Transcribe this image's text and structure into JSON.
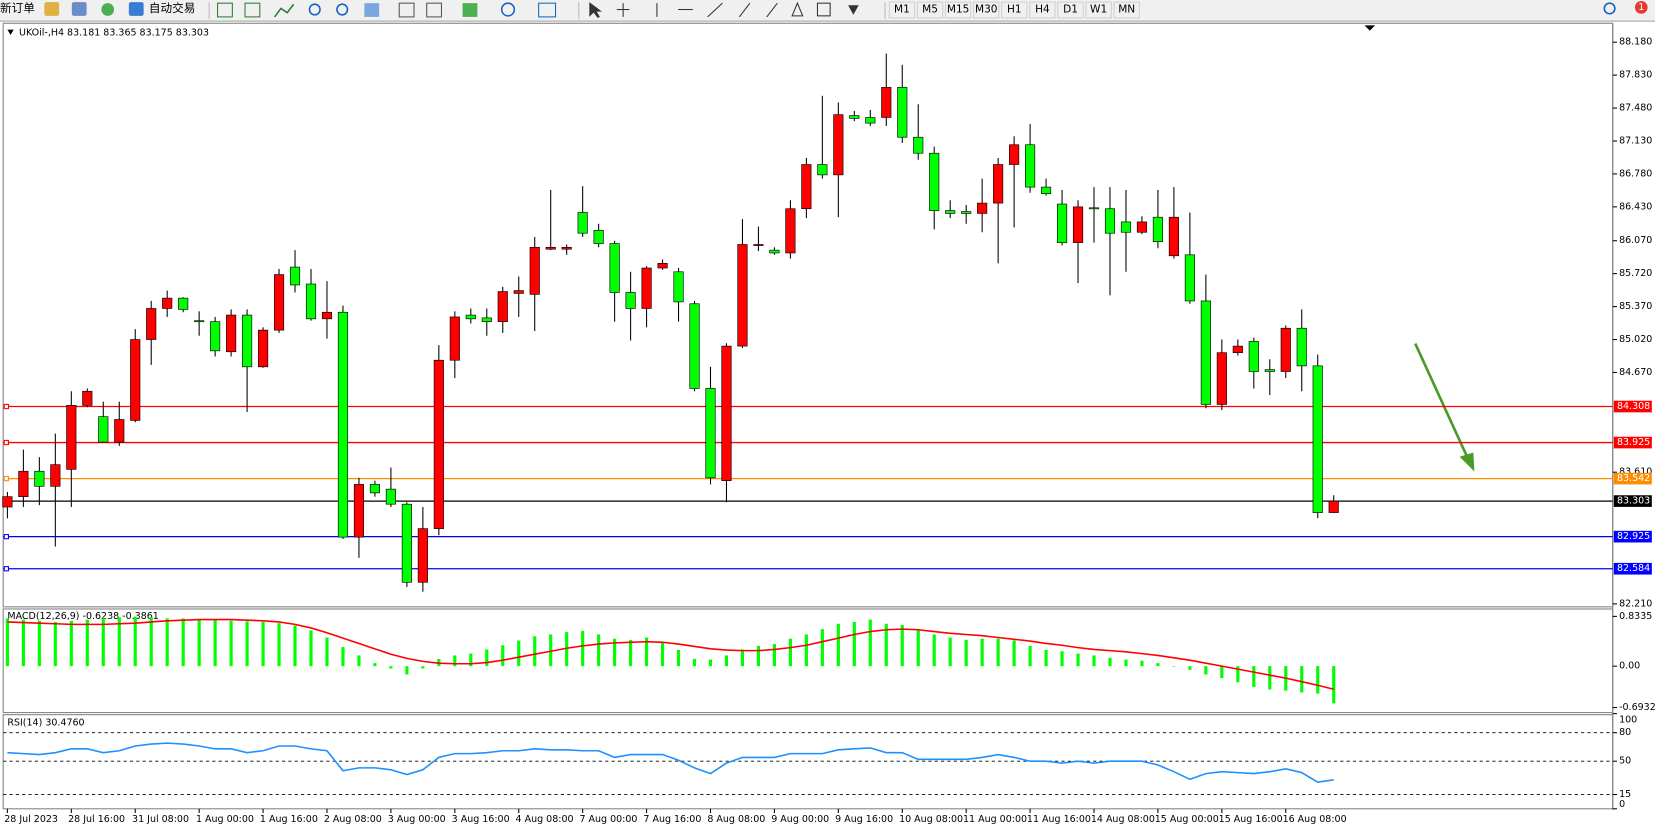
{
  "toolbar": {
    "new_order": "新订单",
    "auto_trading": "自动交易",
    "timeframes": [
      "M1",
      "M5",
      "M15",
      "M30",
      "H1",
      "H4",
      "D1",
      "W1",
      "MN"
    ],
    "notifications": 1
  },
  "chart_data": [
    {
      "type": "candlestick",
      "title": "UKOil-,H4  83.181 83.365 83.175 83.303",
      "up_color": "#ff0000",
      "down_color": "#00ff00",
      "categories": [
        "28 Jul 2023",
        null,
        null,
        null,
        "28 Jul 16:00",
        null,
        null,
        null,
        "31 Jul 08:00",
        null,
        null,
        null,
        "1 Aug 00:00",
        null,
        null,
        null,
        "1 Aug 16:00",
        null,
        null,
        null,
        "2 Aug 08:00",
        null,
        null,
        null,
        "3 Aug 00:00",
        null,
        null,
        null,
        "3 Aug 16:00",
        null,
        null,
        null,
        "4 Aug 08:00",
        null,
        null,
        null,
        "7 Aug 00:00",
        null,
        null,
        null,
        "7 Aug 16:00",
        null,
        null,
        null,
        "8 Aug 08:00",
        null,
        null,
        null,
        "9 Aug 00:00",
        null,
        null,
        null,
        "9 Aug 16:00",
        null,
        null,
        null,
        "10 Aug 08:00",
        null,
        null,
        null,
        "11 Aug 00:00",
        null,
        null,
        null,
        "11 Aug 16:00",
        null,
        null,
        null,
        "14 Aug 08:00",
        null,
        null,
        null,
        "15 Aug 00:00",
        null,
        null,
        null,
        "15 Aug 16:00",
        null,
        null,
        null,
        "16 Aug 08:00",
        null,
        null,
        null
      ],
      "open": [
        83.24,
        83.35,
        83.62,
        83.46,
        83.64,
        84.32,
        84.2,
        83.93,
        84.16,
        85.02,
        85.35,
        85.46,
        85.22,
        85.21,
        84.89,
        85.28,
        84.73,
        85.12,
        85.79,
        85.61,
        85.24,
        85.31,
        82.92,
        83.48,
        83.43,
        83.27,
        82.44,
        83.01,
        84.8,
        85.28,
        85.25,
        85.21,
        85.51,
        85.5,
        85.98,
        85.98,
        86.37,
        86.18,
        86.04,
        85.52,
        85.35,
        85.78,
        85.74,
        85.4,
        84.5,
        83.52,
        84.95,
        86.02,
        85.97,
        85.94,
        86.41,
        86.88,
        86.77,
        87.4,
        87.38,
        87.38,
        87.7,
        87.17,
        87.0,
        86.39,
        86.38,
        86.36,
        86.47,
        86.88,
        87.09,
        86.64,
        86.46,
        86.05,
        86.42,
        86.41,
        86.27,
        86.16,
        86.32,
        85.91,
        85.92,
        85.43,
        84.33,
        84.88,
        85.0,
        84.7,
        84.68,
        85.14,
        84.74,
        83.181
      ],
      "high": [
        83.4,
        83.85,
        83.77,
        84.02,
        84.47,
        84.5,
        84.36,
        84.36,
        85.13,
        85.43,
        85.54,
        85.47,
        85.32,
        85.26,
        85.34,
        85.34,
        85.15,
        85.77,
        85.97,
        85.77,
        85.64,
        85.38,
        83.55,
        83.52,
        83.66,
        83.29,
        83.24,
        84.96,
        85.32,
        85.35,
        85.35,
        85.58,
        85.69,
        86.11,
        86.61,
        86.03,
        86.65,
        86.25,
        86.07,
        85.74,
        85.8,
        85.87,
        85.78,
        85.43,
        84.73,
        84.98,
        86.3,
        86.22,
        86.0,
        86.5,
        86.95,
        87.61,
        87.54,
        87.45,
        87.46,
        88.06,
        87.94,
        87.52,
        87.07,
        86.5,
        86.45,
        86.73,
        86.95,
        87.18,
        87.31,
        86.73,
        86.61,
        86.5,
        86.64,
        86.64,
        86.61,
        86.33,
        86.61,
        86.64,
        86.37,
        85.71,
        85.02,
        85.02,
        85.04,
        84.81,
        85.17,
        85.34,
        84.86,
        83.365
      ],
      "low": [
        83.12,
        83.24,
        83.26,
        82.82,
        83.24,
        84.3,
        83.93,
        83.89,
        84.14,
        84.75,
        85.26,
        85.31,
        85.06,
        84.84,
        84.84,
        84.25,
        84.72,
        85.09,
        85.52,
        85.22,
        85.03,
        82.9,
        82.7,
        83.35,
        83.24,
        82.39,
        82.34,
        82.94,
        84.61,
        85.19,
        85.06,
        85.09,
        85.26,
        85.11,
        85.97,
        85.92,
        86.11,
        86.0,
        85.21,
        85.01,
        85.15,
        85.76,
        85.21,
        84.47,
        83.48,
        83.29,
        84.93,
        85.96,
        85.92,
        85.88,
        86.31,
        86.73,
        86.32,
        87.34,
        87.29,
        87.29,
        87.11,
        86.93,
        86.19,
        86.31,
        86.25,
        86.16,
        85.83,
        86.21,
        86.58,
        86.55,
        86.02,
        85.62,
        86.05,
        85.49,
        85.74,
        86.14,
        85.99,
        85.88,
        85.4,
        84.29,
        84.27,
        84.85,
        84.5,
        84.43,
        84.61,
        84.47,
        83.12,
        83.175
      ],
      "close": [
        83.35,
        83.62,
        83.46,
        83.69,
        84.32,
        84.47,
        83.93,
        84.17,
        85.02,
        85.35,
        85.46,
        85.34,
        85.21,
        84.9,
        85.28,
        84.73,
        85.12,
        85.71,
        85.6,
        85.24,
        85.31,
        82.92,
        83.48,
        83.39,
        83.27,
        82.44,
        83.01,
        84.8,
        85.26,
        85.24,
        85.21,
        85.53,
        85.54,
        86.0,
        86.0,
        86.0,
        86.15,
        86.04,
        85.52,
        85.35,
        85.78,
        85.83,
        85.42,
        84.5,
        83.55,
        84.95,
        86.03,
        86.03,
        85.94,
        86.41,
        86.88,
        86.77,
        87.41,
        87.37,
        87.32,
        87.7,
        87.17,
        87.0,
        86.39,
        86.36,
        86.36,
        86.47,
        86.88,
        87.09,
        86.64,
        86.57,
        86.05,
        86.43,
        86.41,
        86.15,
        86.16,
        86.27,
        86.06,
        86.32,
        85.43,
        84.33,
        84.88,
        84.95,
        84.68,
        84.68,
        85.14,
        84.74,
        83.18,
        83.303
      ],
      "ylim": [
        82.19,
        88.37
      ],
      "yticks": [
        {
          "value": 88.18,
          "label": "88.180"
        },
        {
          "value": 87.83,
          "label": "87.830"
        },
        {
          "value": 87.48,
          "label": "87.480"
        },
        {
          "value": 87.13,
          "label": "87.130"
        },
        {
          "value": 86.78,
          "label": "86.780"
        },
        {
          "value": 86.43,
          "label": "86.430"
        },
        {
          "value": 86.07,
          "label": "86.070"
        },
        {
          "value": 85.72,
          "label": "85.720"
        },
        {
          "value": 85.37,
          "label": "85.370"
        },
        {
          "value": 85.02,
          "label": "85.020"
        },
        {
          "value": 84.67,
          "label": "84.670"
        },
        {
          "value": 83.61,
          "label": "83.610"
        },
        {
          "value": 82.21,
          "label": "82.210"
        }
      ],
      "hlines": [
        {
          "value": 84.308,
          "label": "84.308",
          "color": "#ff0000"
        },
        {
          "value": 83.925,
          "label": "83.925",
          "color": "#ff0000"
        },
        {
          "value": 83.542,
          "label": "83.542",
          "color": "#ff8c00"
        },
        {
          "value": 83.303,
          "label": "83.303",
          "color": "#000000"
        },
        {
          "value": 82.925,
          "label": "82.925",
          "color": "#0000ff"
        },
        {
          "value": 82.584,
          "label": "82.584",
          "color": "#0000ff"
        }
      ]
    },
    {
      "type": "macd",
      "title": "MACD(12,26,9) -0.6238 -0.3861",
      "color": "#00ff00",
      "signal_color": "#ff0000",
      "values": [
        0.8,
        0.78,
        0.76,
        0.74,
        0.76,
        0.78,
        0.8,
        0.82,
        0.83,
        0.82,
        0.8,
        0.8,
        0.79,
        0.78,
        0.76,
        0.75,
        0.74,
        0.72,
        0.68,
        0.6,
        0.48,
        0.32,
        0.18,
        0.05,
        -0.04,
        -0.14,
        -0.04,
        0.12,
        0.18,
        0.21,
        0.28,
        0.35,
        0.43,
        0.5,
        0.53,
        0.57,
        0.59,
        0.53,
        0.46,
        0.44,
        0.48,
        0.39,
        0.27,
        0.12,
        0.11,
        0.18,
        0.28,
        0.34,
        0.37,
        0.46,
        0.53,
        0.62,
        0.71,
        0.74,
        0.78,
        0.71,
        0.69,
        0.62,
        0.53,
        0.48,
        0.44,
        0.46,
        0.46,
        0.43,
        0.34,
        0.27,
        0.25,
        0.21,
        0.18,
        0.14,
        0.11,
        0.09,
        0.05,
        0.0,
        -0.06,
        -0.14,
        -0.2,
        -0.27,
        -0.35,
        -0.39,
        -0.41,
        -0.44,
        -0.46,
        -0.6238
      ],
      "signal": [
        0.74,
        0.73,
        0.72,
        0.71,
        0.7,
        0.7,
        0.7,
        0.71,
        0.72,
        0.74,
        0.76,
        0.77,
        0.78,
        0.78,
        0.78,
        0.77,
        0.76,
        0.74,
        0.7,
        0.64,
        0.56,
        0.47,
        0.38,
        0.29,
        0.2,
        0.13,
        0.08,
        0.05,
        0.04,
        0.04,
        0.06,
        0.1,
        0.15,
        0.2,
        0.25,
        0.3,
        0.34,
        0.37,
        0.39,
        0.4,
        0.41,
        0.4,
        0.37,
        0.33,
        0.29,
        0.27,
        0.26,
        0.26,
        0.28,
        0.31,
        0.35,
        0.41,
        0.47,
        0.53,
        0.58,
        0.61,
        0.62,
        0.61,
        0.58,
        0.55,
        0.53,
        0.51,
        0.48,
        0.45,
        0.42,
        0.38,
        0.35,
        0.31,
        0.28,
        0.26,
        0.24,
        0.21,
        0.18,
        0.14,
        0.1,
        0.05,
        0.0,
        -0.05,
        -0.1,
        -0.15,
        -0.2,
        -0.26,
        -0.32,
        -0.3861
      ],
      "ylim": [
        -0.76,
        0.94
      ],
      "yticks": [
        0.8335,
        {
          "value": 0,
          "label": "0.00"
        },
        -0.6932
      ]
    },
    {
      "type": "line",
      "title": "RSI(14) 30.4760",
      "color": "#1e90ff",
      "values": [
        59,
        58,
        57,
        59,
        63,
        63,
        59,
        61,
        66,
        68,
        69,
        68,
        66,
        63,
        63,
        59,
        61,
        66,
        66,
        63,
        61,
        40,
        43,
        43,
        41,
        36,
        41,
        54,
        58,
        58,
        59,
        61,
        61,
        63,
        62,
        62,
        61,
        61,
        54,
        57,
        57,
        57,
        51,
        43,
        37,
        48,
        54,
        54,
        54,
        58,
        58,
        58,
        62,
        63,
        64,
        59,
        59,
        52,
        52,
        52,
        52,
        54,
        57,
        54,
        50,
        50,
        48,
        50,
        48,
        50,
        50,
        50,
        46,
        39,
        31,
        37,
        39,
        38,
        37,
        39,
        42,
        38,
        28,
        30.476
      ],
      "ylim": [
        0,
        100
      ],
      "yticks": [
        100,
        80,
        50,
        15,
        0
      ],
      "levels": [
        80,
        50,
        15
      ]
    }
  ]
}
